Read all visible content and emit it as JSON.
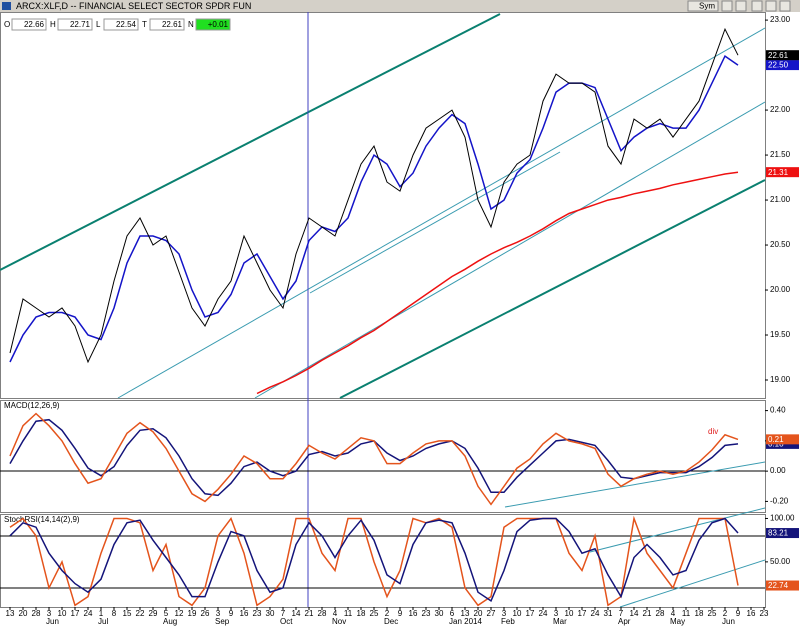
{
  "window": {
    "title": "ARCX:XLF,D -- FINANCIAL SELECT SECTOR SPDR FUN",
    "symbol_button": "Sym",
    "fields": [
      {
        "key": "O",
        "value": "22.66"
      },
      {
        "key": "H",
        "value": "22.71"
      },
      {
        "key": "L",
        "value": "22.54"
      },
      {
        "key": "T",
        "value": "22.61"
      },
      {
        "key": "N",
        "value": "+0.01"
      }
    ]
  },
  "chart_data": [
    {
      "type": "line",
      "ylim": [
        18.8,
        23.09
      ],
      "yticks": [
        {
          "value": 19,
          "label": "19.00"
        },
        {
          "value": 19.5,
          "label": "19.50"
        },
        {
          "value": 20,
          "label": "20.00"
        },
        {
          "value": 20.5,
          "label": "20.50"
        },
        {
          "value": 21,
          "label": "21.00"
        },
        {
          "value": 21.5,
          "label": "21.50"
        },
        {
          "value": 22,
          "label": "22.00"
        },
        {
          "value": 23,
          "label": "23.00"
        }
      ],
      "series": [
        {
          "color": "#ee1111",
          "values": [
            null,
            null,
            null,
            null,
            null,
            null,
            null,
            null,
            null,
            null,
            null,
            null,
            null,
            null,
            null,
            null,
            null,
            null,
            null,
            18.85,
            18.92,
            18.98,
            19.05,
            19.13,
            19.22,
            19.3,
            19.38,
            19.47,
            19.55,
            19.65,
            19.75,
            19.85,
            19.95,
            20.05,
            20.15,
            20.23,
            20.32,
            20.4,
            20.47,
            20.53,
            20.6,
            20.68,
            20.77,
            20.85,
            20.9,
            20.95,
            21.0,
            21.03,
            21.07,
            21.1,
            21.13,
            21.17,
            21.2,
            21.23,
            21.26,
            21.29,
            21.31,
            null,
            null
          ]
        },
        {
          "color": "#1414c8",
          "values": [
            19.2,
            19.5,
            19.7,
            19.75,
            19.75,
            19.7,
            19.5,
            19.45,
            19.8,
            20.3,
            20.6,
            20.6,
            20.55,
            20.4,
            20.0,
            19.7,
            19.75,
            19.95,
            20.3,
            20.4,
            20.15,
            19.9,
            20.1,
            20.55,
            20.7,
            20.65,
            20.8,
            21.2,
            21.5,
            21.4,
            21.15,
            21.3,
            21.6,
            21.8,
            21.95,
            21.85,
            21.4,
            20.9,
            21.0,
            21.3,
            21.45,
            21.8,
            22.2,
            22.3,
            22.3,
            22.25,
            21.9,
            21.55,
            21.7,
            21.8,
            21.85,
            21.8,
            21.8,
            22.0,
            22.3,
            22.6,
            22.5,
            null,
            null
          ],
          "value_labels": [
            null,
            null,
            null,
            null,
            null,
            null,
            null,
            null,
            null,
            null,
            null,
            null,
            null,
            null,
            null,
            null,
            null,
            null,
            null,
            null,
            null,
            null,
            null,
            null,
            null,
            null,
            null,
            null,
            null,
            null,
            null,
            null,
            null,
            null,
            null,
            null,
            null,
            null,
            null,
            null,
            null,
            null,
            null,
            null,
            null,
            null,
            null,
            null,
            null,
            null,
            null,
            null,
            null,
            null,
            null,
            null,
            "22.50",
            null,
            null
          ]
        },
        {
          "color": "#000000",
          "values": [
            19.3,
            19.9,
            19.8,
            19.7,
            19.8,
            19.6,
            19.2,
            19.5,
            20.1,
            20.6,
            20.8,
            20.5,
            20.6,
            20.2,
            19.8,
            19.6,
            19.9,
            20.1,
            20.6,
            20.3,
            20.0,
            19.8,
            20.4,
            20.8,
            20.7,
            20.6,
            21.0,
            21.4,
            21.6,
            21.2,
            21.1,
            21.5,
            21.8,
            21.9,
            22.0,
            21.7,
            21.0,
            20.7,
            21.2,
            21.4,
            21.5,
            22.1,
            22.4,
            22.3,
            22.3,
            22.2,
            21.6,
            21.4,
            21.9,
            21.8,
            21.9,
            21.7,
            21.9,
            22.1,
            22.5,
            22.9,
            22.61,
            null,
            null
          ]
        }
      ]
    },
    {
      "type": "line",
      "label": "MACD(12,26,9)",
      "annotation": "div",
      "ylim": [
        -0.27,
        0.47
      ],
      "yticks": [
        {
          "value": -0.2,
          "label": "-0.20"
        },
        {
          "value": 0,
          "label": "0.00"
        },
        {
          "value": 0.2,
          "label": "0.20"
        },
        {
          "value": 0.4,
          "label": "0.40"
        }
      ],
      "series": [
        {
          "color": "#14147a",
          "values": [
            0.05,
            0.2,
            0.33,
            0.34,
            0.27,
            0.15,
            0.02,
            -0.03,
            0.03,
            0.17,
            0.27,
            0.28,
            0.22,
            0.1,
            -0.05,
            -0.15,
            -0.16,
            -0.08,
            0.03,
            0.06,
            0.0,
            -0.03,
            0.0,
            0.11,
            0.13,
            0.1,
            0.12,
            0.18,
            0.2,
            0.12,
            0.07,
            0.1,
            0.15,
            0.18,
            0.2,
            0.15,
            0.02,
            -0.14,
            -0.14,
            -0.04,
            0.04,
            0.12,
            0.2,
            0.21,
            0.19,
            0.17,
            0.07,
            -0.04,
            -0.05,
            -0.03,
            -0.01,
            -0.01,
            -0.01,
            0.03,
            0.09,
            0.17,
            0.18,
            null,
            null
          ]
        },
        {
          "color": "#e4541c",
          "values": [
            0.1,
            0.3,
            0.38,
            0.3,
            0.2,
            0.05,
            -0.08,
            -0.05,
            0.1,
            0.25,
            0.32,
            0.26,
            0.15,
            0.0,
            -0.15,
            -0.2,
            -0.12,
            -0.02,
            0.1,
            0.05,
            -0.05,
            -0.05,
            0.05,
            0.17,
            0.12,
            0.08,
            0.15,
            0.22,
            0.2,
            0.05,
            0.05,
            0.12,
            0.18,
            0.2,
            0.2,
            0.1,
            -0.1,
            -0.22,
            -0.1,
            0.02,
            0.08,
            0.18,
            0.25,
            0.2,
            0.18,
            0.15,
            -0.02,
            -0.1,
            -0.05,
            -0.02,
            0.0,
            -0.02,
            0.0,
            0.06,
            0.14,
            0.24,
            0.21,
            null,
            null
          ]
        }
      ]
    },
    {
      "type": "line",
      "label": "StochRSI(14,14(2),9)",
      "ylim": [
        -2,
        104
      ],
      "yticks": [
        {
          "value": 50,
          "label": "50.00"
        },
        {
          "value": 100,
          "label": "100.00"
        }
      ],
      "categories": [
        "13",
        "20",
        "28",
        "3",
        "10",
        "17",
        "24",
        "1",
        "8",
        "15",
        "22",
        "29",
        "5",
        "12",
        "19",
        "26",
        "3",
        "9",
        "16",
        "23",
        "30",
        "7",
        "14",
        "21",
        "28",
        "4",
        "11",
        "18",
        "25",
        "2",
        "9",
        "16",
        "23",
        "30",
        "6",
        "13",
        "20",
        "27",
        "3",
        "10",
        "17",
        "24",
        "3",
        "10",
        "17",
        "24",
        "31",
        "7",
        "14",
        "21",
        "28",
        "4",
        "11",
        "18",
        "25",
        "2",
        "9",
        "16",
        "23"
      ],
      "month_categories": [
        null,
        null,
        null,
        "Jun",
        null,
        null,
        null,
        "Jul",
        null,
        null,
        null,
        null,
        "Aug",
        null,
        null,
        null,
        "Sep",
        null,
        null,
        null,
        null,
        "Oct",
        null,
        null,
        null,
        "Nov",
        null,
        null,
        null,
        "Dec",
        null,
        null,
        null,
        null,
        "Jan 2014",
        null,
        null,
        null,
        "Feb",
        null,
        null,
        null,
        "Mar",
        null,
        null,
        null,
        null,
        "Apr",
        null,
        null,
        null,
        "May",
        null,
        null,
        null,
        "Jun",
        null,
        null,
        null
      ],
      "series": [
        {
          "color": "#e4541c",
          "values": [
            90,
            100,
            80,
            20,
            50,
            0,
            10,
            60,
            100,
            100,
            95,
            40,
            70,
            10,
            0,
            20,
            80,
            100,
            60,
            0,
            10,
            30,
            100,
            100,
            60,
            40,
            100,
            100,
            50,
            10,
            40,
            100,
            95,
            100,
            90,
            20,
            0,
            10,
            90,
            100,
            100,
            100,
            100,
            60,
            40,
            80,
            0,
            10,
            100,
            60,
            40,
            20,
            60,
            100,
            100,
            100,
            22.74,
            null,
            null
          ]
        },
        {
          "color": "#14147a",
          "values": [
            80,
            95,
            90,
            60,
            40,
            25,
            15,
            30,
            70,
            95,
            98,
            75,
            55,
            35,
            10,
            10,
            50,
            85,
            80,
            40,
            15,
            20,
            70,
            95,
            80,
            55,
            80,
            98,
            75,
            35,
            25,
            70,
            95,
            98,
            95,
            60,
            15,
            5,
            40,
            85,
            98,
            100,
            100,
            85,
            60,
            65,
            35,
            10,
            55,
            70,
            55,
            35,
            40,
            75,
            95,
            100,
            83.21,
            null,
            null
          ]
        }
      ]
    }
  ]
}
